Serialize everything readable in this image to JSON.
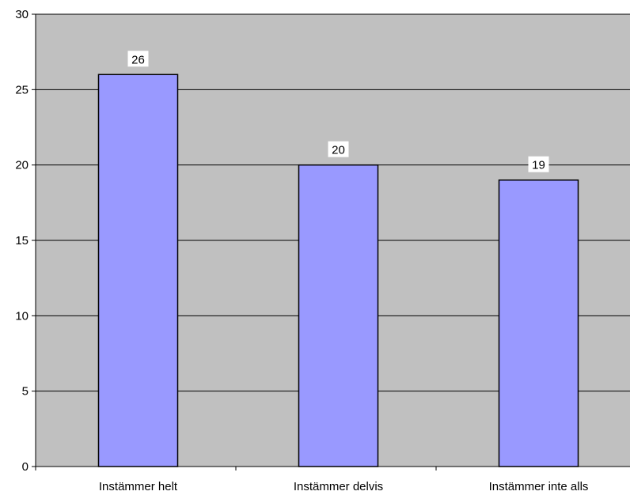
{
  "chart_data": {
    "type": "bar",
    "categories": [
      "Instämmer helt",
      "Instämmer delvis",
      "Instämmer inte alls"
    ],
    "values": [
      26,
      20,
      19
    ],
    "title": "",
    "xlabel": "",
    "ylabel": "",
    "ylim": [
      0,
      30
    ],
    "yticks": [
      0,
      5,
      10,
      15,
      20,
      25,
      30
    ],
    "grid": true,
    "legend": "none",
    "colors": {
      "bar_fill": "#9999ff",
      "bar_stroke": "#000000",
      "plot_background": "#c0c0c0",
      "gridline": "#000000",
      "label_background": "#ffffff"
    }
  }
}
